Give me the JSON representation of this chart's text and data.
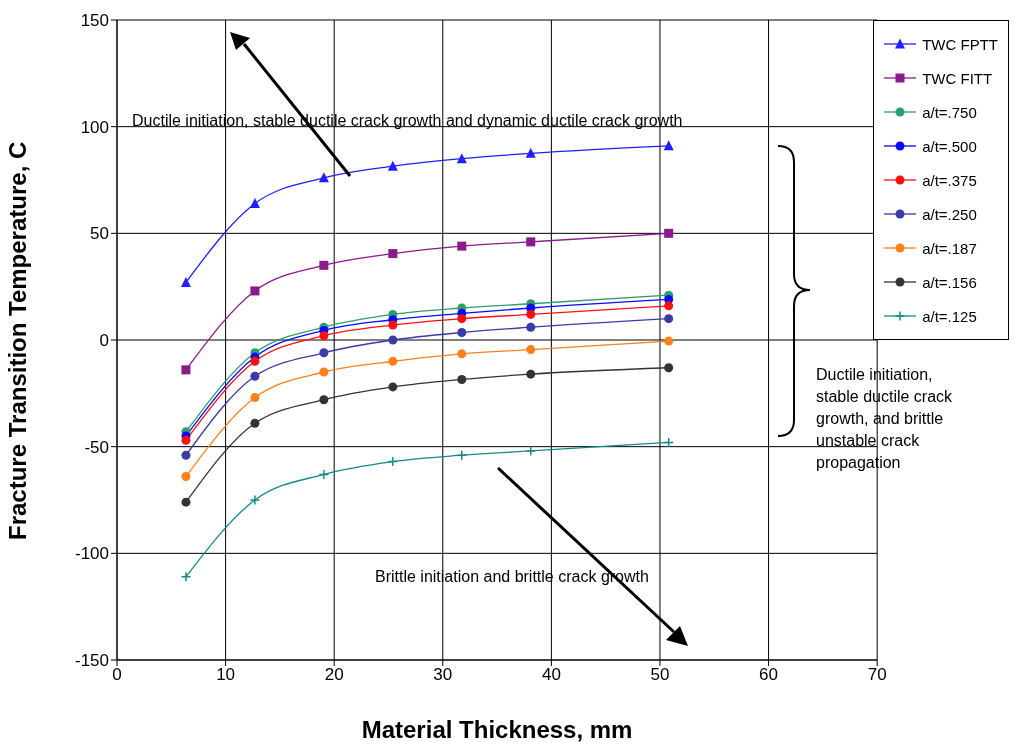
{
  "chart_data": {
    "type": "line",
    "xlabel": "Material Thickness, mm",
    "ylabel": "Fracture Transition Temperature, C",
    "x": [
      6.35,
      12.7,
      19.05,
      25.4,
      31.75,
      38.1,
      50.8
    ],
    "series": [
      {
        "name": "TWC FPTT",
        "color": "#1f1fff",
        "marker": "triangle",
        "values": [
          27,
          64,
          76,
          81.5,
          85,
          87.5,
          91
        ]
      },
      {
        "name": "TWC FITT",
        "color": "#8b1a8b",
        "marker": "square",
        "values": [
          -14,
          23,
          35,
          40.5,
          44,
          46,
          50
        ]
      },
      {
        "name": "a/t=.750",
        "color": "#2e9e6e",
        "marker": "circle",
        "values": [
          -43,
          -6,
          6,
          12,
          15,
          17,
          21
        ]
      },
      {
        "name": "a/t=.500",
        "color": "#0a0aff",
        "marker": "circle",
        "values": [
          -45,
          -8,
          4.5,
          9.5,
          12.5,
          15,
          19
        ]
      },
      {
        "name": "a/t=.375",
        "color": "#ff1010",
        "marker": "circle",
        "values": [
          -47,
          -10,
          2,
          7,
          10,
          12,
          16
        ]
      },
      {
        "name": "a/t=.250",
        "color": "#3a3aa8",
        "marker": "circle",
        "values": [
          -54,
          -17,
          -6,
          0,
          3.5,
          6,
          10
        ]
      },
      {
        "name": "a/t=.187",
        "color": "#ff7f1a",
        "marker": "circle",
        "values": [
          -64,
          -27,
          -15,
          -10,
          -6.5,
          -4.5,
          -0.5
        ]
      },
      {
        "name": "a/t=.156",
        "color": "#333333",
        "marker": "circle",
        "values": [
          -76,
          -39,
          -28,
          -22,
          -18.5,
          -16,
          -13
        ]
      },
      {
        "name": "a/t=.125",
        "color": "#138a8a",
        "marker": "cross",
        "values": [
          -111,
          -75,
          -63,
          -57,
          -54,
          -52,
          -48
        ]
      }
    ],
    "xlim": [
      0,
      70
    ],
    "xticks": [
      0,
      10,
      20,
      30,
      40,
      50,
      60,
      70
    ],
    "ylim": [
      -150,
      150
    ],
    "yticks": [
      -150,
      -100,
      -50,
      0,
      50,
      100,
      150
    ],
    "grid": true,
    "legend": "top right",
    "annotations": [
      "Ductile initiation, stable ductile crack growth and dynamic ductile crack growth",
      "Ductile initiation, stable ductile crack growth, and brittle unstable crack propagation",
      "Brittle initiation and brittle crack growth"
    ]
  }
}
